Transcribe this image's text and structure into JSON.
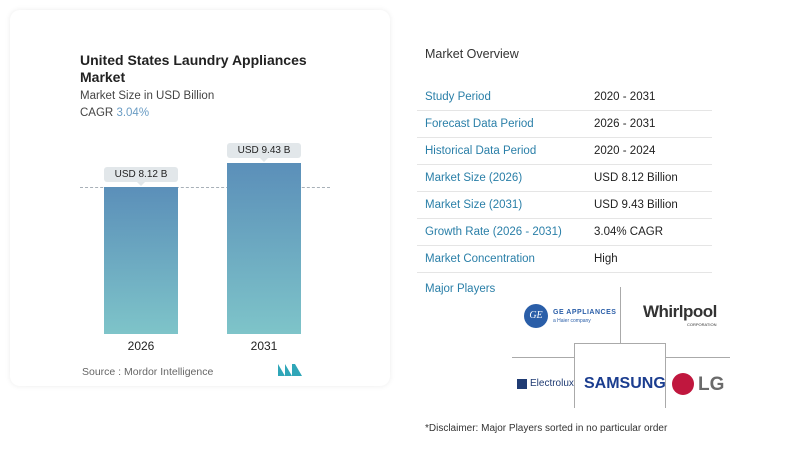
{
  "chart": {
    "title": "United States Laundry Appliances Market",
    "subtitle": "Market Size in USD Billion",
    "cagr_label": "CAGR",
    "cagr_value": "3.04%",
    "source": "Source :  Mordor Intelligence"
  },
  "chart_data": {
    "type": "bar",
    "categories": [
      "2026",
      "2031"
    ],
    "values": [
      8.12,
      9.43
    ],
    "data_labels": [
      "USD 8.12 B",
      "USD 9.43 B"
    ],
    "title": "United States Laundry Appliances Market",
    "ylabel": "Market Size in USD Billion",
    "colors": [
      "#5b8fb9",
      "#7ec4c9"
    ],
    "grid": false,
    "reference_line": 8.12
  },
  "overview": {
    "title": "Market Overview",
    "rows": [
      {
        "label": "Study Period",
        "value": "2020 - 2031"
      },
      {
        "label": "Forecast Data Period",
        "value": "2026 - 2031"
      },
      {
        "label": "Historical Data Period",
        "value": "2020 - 2024"
      },
      {
        "label": "Market Size (2026)",
        "value": "USD 8.12 Billion"
      },
      {
        "label": "Market Size (2031)",
        "value": "USD 9.43 Billion"
      },
      {
        "label": "Growth Rate (2026 - 2031)",
        "value": "3.04% CAGR"
      },
      {
        "label": "Market Concentration",
        "value": "High"
      }
    ]
  },
  "players": {
    "title": "Major Players",
    "logos": {
      "ge": "GE APPLIANCES",
      "ge_sub": "a Haier company",
      "whirlpool": "Whirlpool",
      "whirlpool_sub": "CORPORATION",
      "electrolux": "Electrolux",
      "samsung": "SAMSUNG",
      "lg": "LG"
    }
  },
  "disclaimer": "*Disclaimer: Major Players sorted in no particular order"
}
